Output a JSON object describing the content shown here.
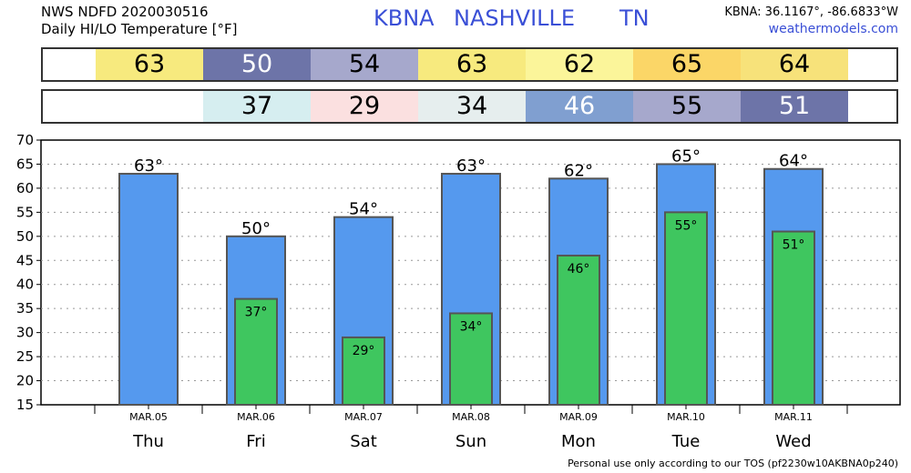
{
  "header": {
    "product": "NWS NDFD 2020030516",
    "subtitle": "Daily HI/LO Temperature [°F]",
    "station": "KBNA",
    "city": "NASHVILLE",
    "state": "TN",
    "coords": "KBNA: 36.1167°, -86.6833°W",
    "site": "weathermodels.com"
  },
  "hi_strip": [
    {
      "value": "63",
      "bg": "#f7ea7e",
      "fg": "#000000"
    },
    {
      "value": "50",
      "bg": "#6d74a8",
      "fg": "#ffffff"
    },
    {
      "value": "54",
      "bg": "#a6a8cc",
      "fg": "#000000"
    },
    {
      "value": "63",
      "bg": "#f7ea7e",
      "fg": "#000000"
    },
    {
      "value": "62",
      "bg": "#fbf59a",
      "fg": "#000000"
    },
    {
      "value": "65",
      "bg": "#fbd667",
      "fg": "#000000"
    },
    {
      "value": "64",
      "bg": "#f7e27a",
      "fg": "#000000"
    }
  ],
  "lo_strip": [
    {
      "value": "",
      "bg": "#ffffff",
      "fg": "#000000"
    },
    {
      "value": "37",
      "bg": "#d6eef0",
      "fg": "#000000"
    },
    {
      "value": "29",
      "bg": "#fbe0e0",
      "fg": "#000000"
    },
    {
      "value": "34",
      "bg": "#e6eeee",
      "fg": "#000000"
    },
    {
      "value": "46",
      "bg": "#809fd0",
      "fg": "#ffffff"
    },
    {
      "value": "55",
      "bg": "#a6a8cc",
      "fg": "#000000"
    },
    {
      "value": "51",
      "bg": "#6d74a8",
      "fg": "#ffffff"
    }
  ],
  "chart_data": {
    "type": "bar",
    "categories": [
      "Thu",
      "Fri",
      "Sat",
      "Sun",
      "Mon",
      "Tue",
      "Wed"
    ],
    "dates": [
      "MAR.05",
      "MAR.06",
      "MAR.07",
      "MAR.08",
      "MAR.09",
      "MAR.10",
      "MAR.11"
    ],
    "series": [
      {
        "values": [
          63,
          50,
          54,
          63,
          62,
          65,
          64
        ],
        "color": "#5599ee",
        "labels": [
          "63°",
          "50°",
          "54°",
          "63°",
          "62°",
          "65°",
          "64°"
        ]
      },
      {
        "values": [
          null,
          37,
          29,
          34,
          46,
          55,
          51
        ],
        "color": "#3fc65f",
        "labels": [
          "",
          "37°",
          "29°",
          "34°",
          "46°",
          "55°",
          "51°"
        ]
      }
    ],
    "yticks": [
      "15",
      "20",
      "25",
      "30",
      "35",
      "40",
      "45",
      "50",
      "55",
      "60",
      "65",
      "70"
    ],
    "ylim": [
      15,
      70
    ],
    "grid": true
  },
  "footer": "Personal use only according to our TOS (pf2230w10AKBNA0p240)"
}
